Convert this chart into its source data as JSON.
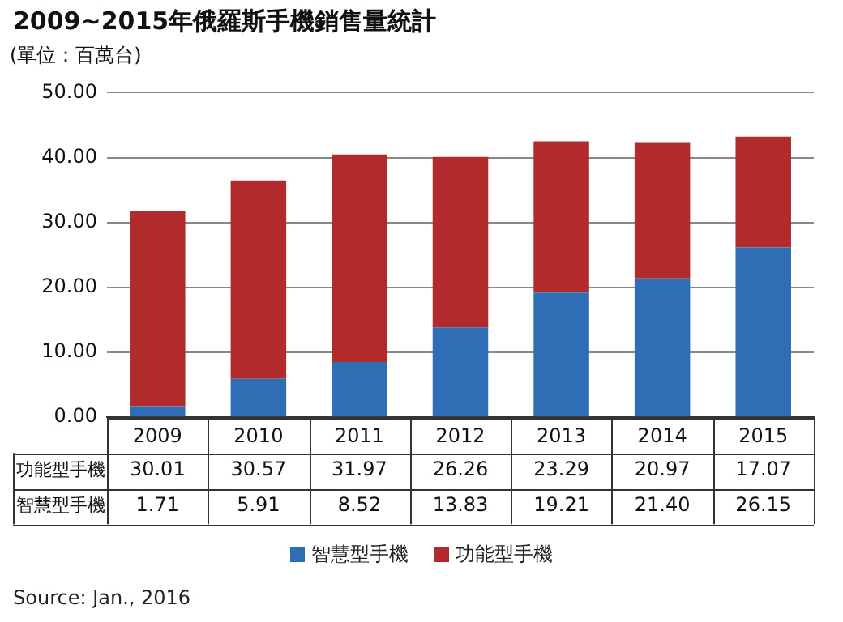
{
  "chart_data": {
    "type": "bar",
    "title": "2009~2015年俄羅斯手機銷售量統計",
    "subtitle": "(單位：百萬台)",
    "categories": [
      "2009",
      "2010",
      "2011",
      "2012",
      "2013",
      "2014",
      "2015"
    ],
    "stacked": true,
    "series": [
      {
        "name": "智慧型手機",
        "color": "#2f6db5",
        "values": [
          1.71,
          5.91,
          8.52,
          13.83,
          19.21,
          21.4,
          26.15
        ],
        "value_labels": [
          "1.71",
          "5.91",
          "8.52",
          "13.83",
          "19.21",
          "21.40",
          "26.15"
        ]
      },
      {
        "name": "功能型手機",
        "color": "#b12a2c",
        "values": [
          30.01,
          30.57,
          31.97,
          26.26,
          23.29,
          20.97,
          17.07
        ],
        "value_labels": [
          "30.01",
          "30.57",
          "31.97",
          "26.26",
          "23.29",
          "20.97",
          "17.07"
        ]
      }
    ],
    "ylim": [
      0,
      50
    ],
    "yticks": [
      {
        "value": 0,
        "label": "0.00"
      },
      {
        "value": 10,
        "label": "10.00"
      },
      {
        "value": 20,
        "label": "20.00"
      },
      {
        "value": 30,
        "label": "30.00"
      },
      {
        "value": 40,
        "label": "40.00"
      },
      {
        "value": 50,
        "label": "50.00"
      }
    ],
    "grid": "y",
    "legend": "bottom",
    "annotations": [
      "Source: Jan., 2016"
    ]
  }
}
